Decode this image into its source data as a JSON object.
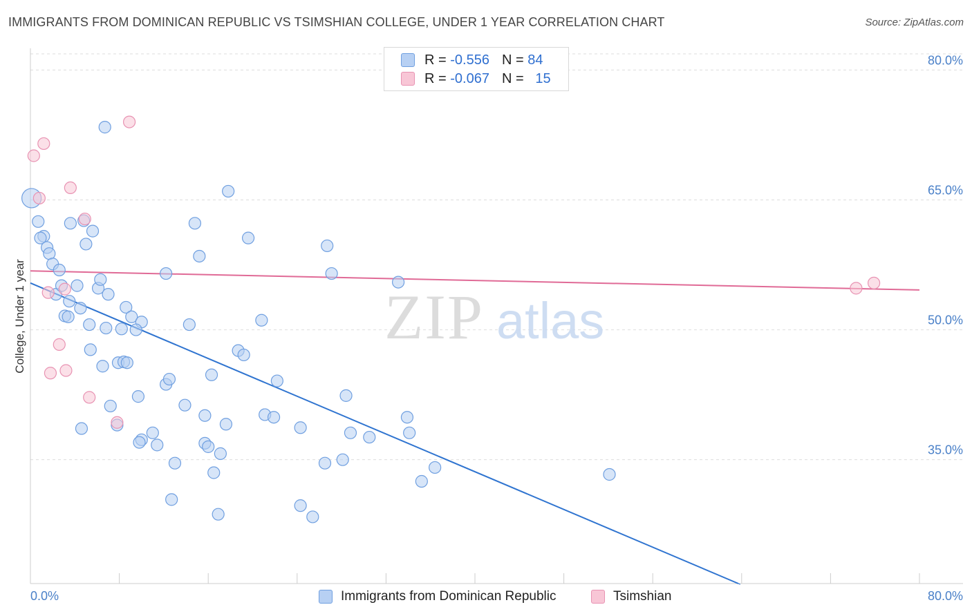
{
  "header": {
    "title": "IMMIGRANTS FROM DOMINICAN REPUBLIC VS TSIMSHIAN COLLEGE, UNDER 1 YEAR CORRELATION CHART",
    "source": "Source: ZipAtlas.com"
  },
  "watermark": {
    "zip": "ZIP",
    "atlas": "atlas"
  },
  "legend": {
    "rows": [
      {
        "r_label": "R =",
        "r_value": "-0.556",
        "n_label": "N =",
        "n_value": "84",
        "color": "#b7d0f3"
      },
      {
        "r_label": "R =",
        "r_value": "-0.067",
        "n_label": "N =",
        "n_value": "15",
        "color": "#f8c6d6"
      }
    ]
  },
  "bottom_legend": [
    {
      "label": "Immigrants from Dominican Republic",
      "color": "#b7d0f3"
    },
    {
      "label": "Tsimshian",
      "color": "#f8c6d6"
    }
  ],
  "chart_data": {
    "type": "scatter",
    "title": "IMMIGRANTS FROM DOMINICAN REPUBLIC VS TSIMSHIAN COLLEGE, UNDER 1 YEAR CORRELATION CHART",
    "xlabel": "",
    "ylabel": "College, Under 1 year",
    "xlim": [
      0,
      80
    ],
    "ylim": [
      20.7,
      82.5
    ],
    "x_tick_labels": [
      "0.0%",
      "80.0%"
    ],
    "y_ticks": [
      35,
      50,
      65,
      80
    ],
    "y_tick_labels": [
      "35.0%",
      "50.0%",
      "65.0%",
      "80.0%"
    ],
    "grid": "horizontal dashed",
    "legend_position": "top-center",
    "series": [
      {
        "name": "Immigrants from Dominican Republic",
        "color": "#6f9fe0",
        "fill": "#b7d0f3",
        "points": [
          [
            0.1,
            65.2
          ],
          [
            0.7,
            62.5
          ],
          [
            1.2,
            60.8
          ],
          [
            1.5,
            59.5
          ],
          [
            1.7,
            58.8
          ],
          [
            2.0,
            57.6
          ],
          [
            2.6,
            56.9
          ],
          [
            0.9,
            60.6
          ],
          [
            2.3,
            54.1
          ],
          [
            2.8,
            55.1
          ],
          [
            3.1,
            51.6
          ],
          [
            3.5,
            53.3
          ],
          [
            4.2,
            55.1
          ],
          [
            4.5,
            52.5
          ],
          [
            3.4,
            51.5
          ],
          [
            5.0,
            59.9
          ],
          [
            5.6,
            61.4
          ],
          [
            4.8,
            62.6
          ],
          [
            3.6,
            62.3
          ],
          [
            6.7,
            73.4
          ],
          [
            6.1,
            54.8
          ],
          [
            6.3,
            55.8
          ],
          [
            7.0,
            54.1
          ],
          [
            6.8,
            50.2
          ],
          [
            5.3,
            50.6
          ],
          [
            5.4,
            47.7
          ],
          [
            6.5,
            45.8
          ],
          [
            8.2,
            50.1
          ],
          [
            8.6,
            52.6
          ],
          [
            9.1,
            51.5
          ],
          [
            10.0,
            50.9
          ],
          [
            9.5,
            50.0
          ],
          [
            7.2,
            41.2
          ],
          [
            7.8,
            39.0
          ],
          [
            7.9,
            46.2
          ],
          [
            8.4,
            46.3
          ],
          [
            8.7,
            46.2
          ],
          [
            9.7,
            42.3
          ],
          [
            10.0,
            37.3
          ],
          [
            9.8,
            37.0
          ],
          [
            11.0,
            38.1
          ],
          [
            12.2,
            43.7
          ],
          [
            12.5,
            44.3
          ],
          [
            11.4,
            36.7
          ],
          [
            12.2,
            56.5
          ],
          [
            12.7,
            30.4
          ],
          [
            13.0,
            34.6
          ],
          [
            13.9,
            41.3
          ],
          [
            14.3,
            50.6
          ],
          [
            15.2,
            58.5
          ],
          [
            14.8,
            62.3
          ],
          [
            15.7,
            36.9
          ],
          [
            16.0,
            36.5
          ],
          [
            16.3,
            44.8
          ],
          [
            15.7,
            40.1
          ],
          [
            16.9,
            28.7
          ],
          [
            17.1,
            35.7
          ],
          [
            16.5,
            33.5
          ],
          [
            17.6,
            39.1
          ],
          [
            18.7,
            47.6
          ],
          [
            19.2,
            47.1
          ],
          [
            19.6,
            60.6
          ],
          [
            17.8,
            66.0
          ],
          [
            20.8,
            51.1
          ],
          [
            21.1,
            40.2
          ],
          [
            21.9,
            39.9
          ],
          [
            22.2,
            44.1
          ],
          [
            24.3,
            29.7
          ],
          [
            24.3,
            38.7
          ],
          [
            25.4,
            28.4
          ],
          [
            26.7,
            59.7
          ],
          [
            27.1,
            56.5
          ],
          [
            26.5,
            34.6
          ],
          [
            28.1,
            35.0
          ],
          [
            28.4,
            42.4
          ],
          [
            28.8,
            38.1
          ],
          [
            30.5,
            37.6
          ],
          [
            33.1,
            55.5
          ],
          [
            33.9,
            39.9
          ],
          [
            34.1,
            38.1
          ],
          [
            35.2,
            32.5
          ],
          [
            36.4,
            34.1
          ],
          [
            52.1,
            33.3
          ],
          [
            4.6,
            38.6
          ]
        ]
      },
      {
        "name": "Tsimshian",
        "color": "#e892b2",
        "fill": "#f8c6d6",
        "points": [
          [
            0.3,
            70.1
          ],
          [
            1.2,
            71.5
          ],
          [
            0.8,
            65.2
          ],
          [
            3.6,
            66.4
          ],
          [
            8.9,
            74.0
          ],
          [
            4.9,
            62.8
          ],
          [
            1.6,
            54.3
          ],
          [
            3.1,
            54.7
          ],
          [
            2.6,
            48.3
          ],
          [
            1.8,
            45.0
          ],
          [
            3.2,
            45.3
          ],
          [
            5.3,
            42.2
          ],
          [
            7.8,
            39.3
          ],
          [
            74.3,
            54.8
          ],
          [
            75.9,
            55.4
          ]
        ]
      }
    ],
    "trend_lines": [
      {
        "series": "Immigrants from Dominican Republic",
        "color": "#2f74d0",
        "x": [
          0,
          63.7
        ],
        "y": [
          55.4,
          20.7
        ]
      },
      {
        "series": "Tsimshian",
        "color": "#e06a96",
        "x": [
          0,
          80
        ],
        "y": [
          56.8,
          54.6
        ]
      }
    ]
  }
}
